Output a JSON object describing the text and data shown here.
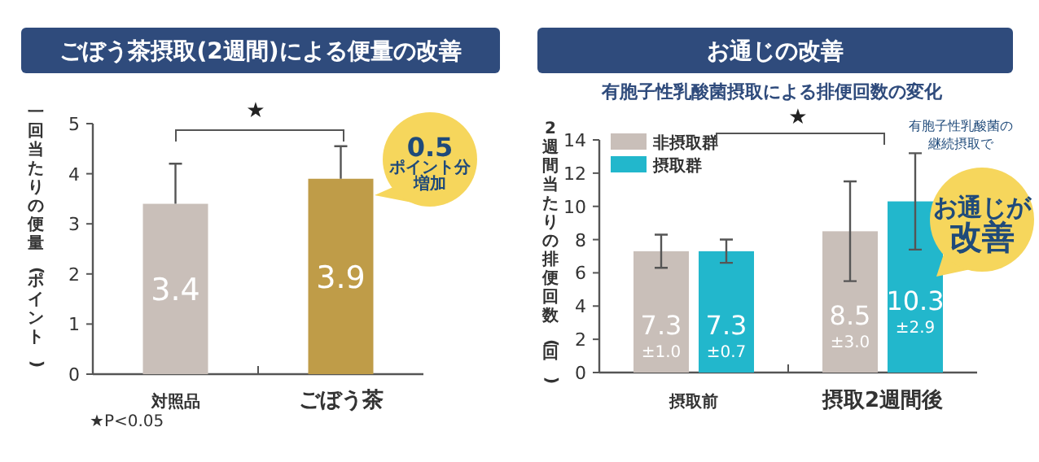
{
  "chart_data": [
    {
      "type": "bar",
      "title": "ごぼう茶摂取(2週間)による便量の改善",
      "ylabel": "一回当たりの便量(ポイント)",
      "categories": [
        "対照品",
        "ごぼう茶"
      ],
      "values": [
        3.4,
        3.9
      ],
      "colors": [
        "#c9bfb9",
        "#bf9c48"
      ],
      "errors": [
        [
          3.4,
          4.2
        ],
        [
          3.9,
          4.55
        ]
      ],
      "data_labels": true,
      "ylim": [
        0,
        5
      ],
      "yticks": [
        0,
        1,
        2,
        3,
        4,
        5
      ],
      "grid": false,
      "legend": false,
      "annotations": [
        "★",
        "0.5ポイント分増加",
        "★P<0.05"
      ]
    },
    {
      "type": "bar",
      "title": "お通じの改善",
      "subtitle": "有胞子性乳酸菌摂取による排便回数の変化",
      "ylabel": "2週間当たりの排便回数(回)",
      "categories": [
        "摂取前",
        "摂取2週間後"
      ],
      "series": [
        {
          "name": "非摂取群",
          "color": "#c9bfb9",
          "values": [
            7.3,
            8.5
          ],
          "errors": [
            1.0,
            3.0
          ],
          "value_labels": [
            "7.3 ±1.0",
            "8.5 ±3.0"
          ]
        },
        {
          "name": "摂取群",
          "color": "#22b7cc",
          "values": [
            7.3,
            10.3
          ],
          "errors": [
            0.7,
            2.9
          ],
          "value_labels": [
            "7.3 ±0.7",
            "10.3 ±2.9"
          ]
        }
      ],
      "ylim": [
        0,
        14
      ],
      "yticks": [
        0,
        2,
        4,
        6,
        8,
        10,
        12,
        14
      ],
      "grid": false,
      "legend": "top left",
      "annotations": [
        "★",
        "有胞子性乳酸菌の継続摂取で",
        "お通じが改善"
      ]
    }
  ]
}
